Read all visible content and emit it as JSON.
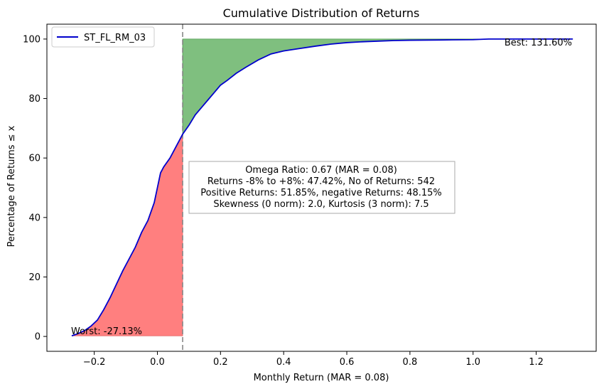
{
  "chart_data": {
    "type": "line",
    "title": "Cumulative Distribution of Returns",
    "xlabel": "Monthly Return (MAR = 0.08)",
    "ylabel": "Percentage of Returns ≤ x",
    "xlim": [
      -0.35,
      1.39
    ],
    "ylim": [
      -5,
      105
    ],
    "x_ticks": [
      -0.2,
      0.0,
      0.2,
      0.4,
      0.6,
      0.8,
      1.0,
      1.2
    ],
    "x_tick_labels": [
      "−0.2",
      "0.0",
      "0.2",
      "0.4",
      "0.6",
      "0.8",
      "1.0",
      "1.2"
    ],
    "y_ticks": [
      0,
      20,
      40,
      60,
      80,
      100
    ],
    "y_tick_labels": [
      "0",
      "20",
      "40",
      "60",
      "80",
      "100"
    ],
    "grid": false,
    "legend_position": "top-left",
    "mar": 0.08,
    "series": [
      {
        "name": "ST_FL_RM_03",
        "color": "#0000cc",
        "x": [
          -0.2713,
          -0.25,
          -0.23,
          -0.21,
          -0.19,
          -0.17,
          -0.15,
          -0.13,
          -0.11,
          -0.09,
          -0.07,
          -0.05,
          -0.03,
          -0.01,
          0.0,
          0.01,
          0.02,
          0.04,
          0.06,
          0.08,
          0.1,
          0.12,
          0.14,
          0.16,
          0.18,
          0.2,
          0.22,
          0.25,
          0.28,
          0.32,
          0.36,
          0.4,
          0.45,
          0.5,
          0.55,
          0.6,
          0.65,
          0.7,
          0.75,
          0.8,
          0.9,
          1.0,
          1.05,
          1.2,
          1.316
        ],
        "y": [
          0.2,
          1.0,
          2.0,
          3.5,
          5.5,
          9.0,
          13.0,
          17.5,
          22.0,
          26.0,
          30.0,
          35.0,
          39.0,
          45.0,
          50.0,
          55.0,
          57.0,
          60.0,
          64.0,
          68.0,
          71.0,
          74.5,
          77.0,
          79.5,
          82.0,
          84.5,
          86.0,
          88.5,
          90.5,
          93.0,
          95.0,
          96.0,
          96.8,
          97.6,
          98.3,
          98.8,
          99.1,
          99.3,
          99.5,
          99.6,
          99.7,
          99.8,
          100.0,
          100.0,
          100.0
        ]
      }
    ],
    "annotations": {
      "worst": "Worst: -27.13%",
      "best": "Best: 131.60%"
    },
    "stats_box": [
      "Omega Ratio: 0.67 (MAR = 0.08)",
      "Returns -8% to +8%: 47.42%, No of Returns: 542",
      "Positive Returns: 51.85%, negative Returns: 48.15%",
      "Skewness (0 norm): 2.0, Kurtosis (3 norm): 7.5"
    ],
    "fill_below_mar_color": "#ff7f7f",
    "fill_above_mar_color": "#7fbf7f",
    "mar_line_color": "#808080"
  }
}
